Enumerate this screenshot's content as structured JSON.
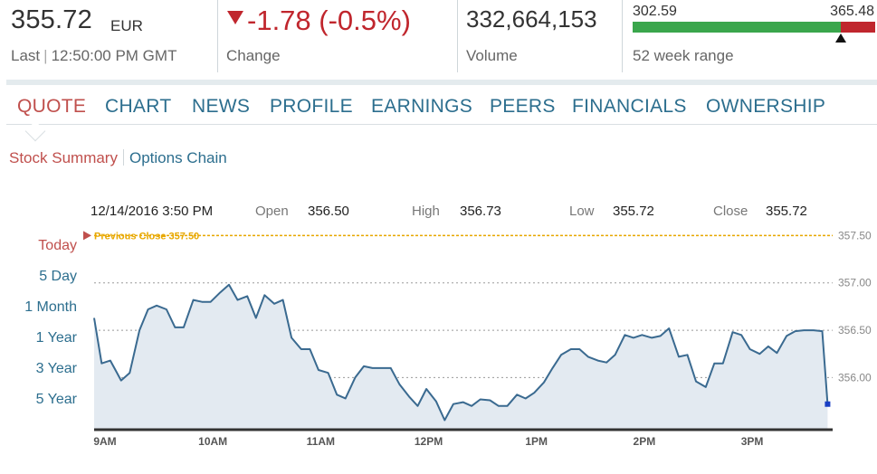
{
  "header": {
    "price": "355.72",
    "currency": "EUR",
    "last_label": "Last",
    "last_time": "12:50:00 PM GMT",
    "change_value": "-1.78 (-0.5%)",
    "change_label": "Change",
    "volume_value": "332,664,153",
    "volume_label": "Volume",
    "range_low": "302.59",
    "range_high": "365.48",
    "range_label": "52 week range",
    "range_position": 0.86
  },
  "tabs": [
    {
      "label": "QUOTE",
      "active": true
    },
    {
      "label": "CHART",
      "active": false
    },
    {
      "label": "NEWS",
      "active": false
    },
    {
      "label": "PROFILE",
      "active": false
    },
    {
      "label": "EARNINGS",
      "active": false
    },
    {
      "label": "PEERS",
      "active": false
    },
    {
      "label": "FINANCIALS",
      "active": false
    },
    {
      "label": "OWNERSHIP",
      "active": false
    }
  ],
  "subnav": {
    "stock_summary": "Stock Summary",
    "options_chain": "Options Chain"
  },
  "chart_info": {
    "datetime": "12/14/2016 3:50 PM",
    "open_label": "Open",
    "open_value": "356.50",
    "high_label": "High",
    "high_value": "356.73",
    "low_label": "Low",
    "low_value": "355.72",
    "close_label": "Close",
    "close_value": "355.72"
  },
  "ranges": [
    "Today",
    "5 Day",
    "1 Month",
    "1 Year",
    "3 Year",
    "5 Year"
  ],
  "colors": {
    "accent_red": "#c0504d",
    "link_blue": "#2c6e8e",
    "line": "#3a6a90",
    "fill": "#e3eaf1",
    "prev_close": "#e8a800"
  },
  "chart_data": {
    "type": "area",
    "title": "",
    "previous_close": 357.5,
    "previous_close_label": "Previous Close 357.50",
    "ylim": [
      355.45,
      357.58
    ],
    "yticks": [
      356.0,
      356.5,
      357.0,
      357.5
    ],
    "ytick_labels": [
      "356.00",
      "356.50",
      "357.00",
      "357.50"
    ],
    "xlim": [
      9.0,
      15.83
    ],
    "xticks": [
      9,
      10,
      11,
      12,
      13,
      14,
      15
    ],
    "xtick_labels": [
      "9AM",
      "10AM",
      "11AM",
      "12PM",
      "1PM",
      "2PM",
      "3PM"
    ],
    "x": [
      9.0,
      9.07,
      9.15,
      9.25,
      9.33,
      9.42,
      9.5,
      9.58,
      9.67,
      9.75,
      9.83,
      9.92,
      10.0,
      10.08,
      10.17,
      10.25,
      10.33,
      10.42,
      10.5,
      10.58,
      10.67,
      10.75,
      10.83,
      10.92,
      11.0,
      11.08,
      11.17,
      11.25,
      11.33,
      11.42,
      11.5,
      11.58,
      11.67,
      11.75,
      11.83,
      11.92,
      12.0,
      12.08,
      12.17,
      12.25,
      12.33,
      12.42,
      12.5,
      12.58,
      12.67,
      12.75,
      12.83,
      12.92,
      13.0,
      13.08,
      13.17,
      13.25,
      13.33,
      13.42,
      13.5,
      13.58,
      13.67,
      13.75,
      13.83,
      13.92,
      14.0,
      14.08,
      14.17,
      14.25,
      14.33,
      14.42,
      14.5,
      14.58,
      14.67,
      14.75,
      14.83,
      14.92,
      15.0,
      15.08,
      15.17,
      15.25,
      15.33,
      15.42,
      15.5,
      15.58,
      15.67,
      15.75,
      15.8
    ],
    "values": [
      356.63,
      356.15,
      356.18,
      355.97,
      356.05,
      356.5,
      356.72,
      356.76,
      356.72,
      356.53,
      356.53,
      356.82,
      356.8,
      356.8,
      356.9,
      356.98,
      356.82,
      356.86,
      356.63,
      356.87,
      356.78,
      356.82,
      356.42,
      356.3,
      356.3,
      356.08,
      356.05,
      355.82,
      355.78,
      356.0,
      356.12,
      356.1,
      356.1,
      356.1,
      355.93,
      355.8,
      355.7,
      355.88,
      355.75,
      355.55,
      355.72,
      355.74,
      355.7,
      355.77,
      355.76,
      355.7,
      355.7,
      355.82,
      355.78,
      355.84,
      355.95,
      356.1,
      356.24,
      356.3,
      356.3,
      356.22,
      356.18,
      356.16,
      356.24,
      356.45,
      356.42,
      356.45,
      356.42,
      356.44,
      356.52,
      356.22,
      356.24,
      355.96,
      355.9,
      356.15,
      356.15,
      356.48,
      356.45,
      356.3,
      356.25,
      356.33,
      356.26,
      356.44,
      356.49,
      356.5,
      356.5,
      356.49,
      355.72
    ]
  }
}
